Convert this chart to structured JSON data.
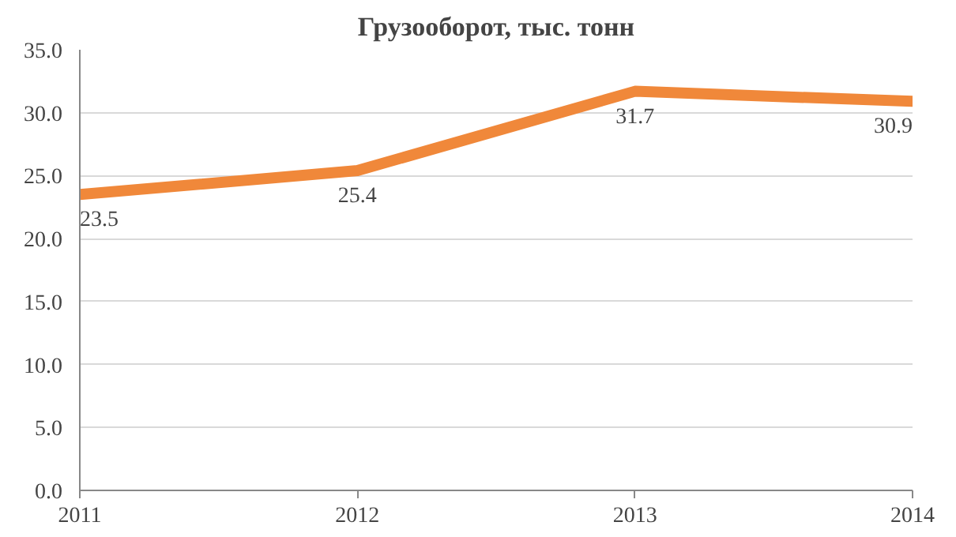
{
  "chart_data": {
    "type": "line",
    "title": "Грузооборот, тыс. тонн",
    "x": [
      2011,
      2012,
      2013,
      2014
    ],
    "series": [
      {
        "color": "#f0883a",
        "values": [
          23.5,
          25.4,
          31.7,
          30.9
        ]
      }
    ],
    "xlim": [
      2011,
      2014
    ],
    "xticks": [
      2011,
      2012,
      2013,
      2014
    ],
    "ylim": [
      0,
      35
    ],
    "yticks": [
      {
        "value": 0,
        "label": "0.0"
      },
      {
        "value": 5,
        "label": "5.0"
      },
      {
        "value": 10,
        "label": "10.0"
      },
      {
        "value": 15,
        "label": "15.0"
      },
      {
        "value": 20,
        "label": "20.0"
      },
      {
        "value": 25,
        "label": "25.0"
      },
      {
        "value": 30,
        "label": "30.0"
      },
      {
        "value": 35,
        "label": "35.0"
      }
    ],
    "grid": "y",
    "data_labels": true,
    "marker": "none",
    "line_style": "solid"
  }
}
